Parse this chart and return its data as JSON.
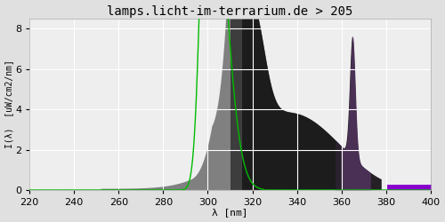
{
  "title": "lamps.licht-im-terrarium.de > 205",
  "xlabel": "λ [nm]",
  "ylabel": "I(λ)  [uW/cm2/nm]",
  "xlim": [
    220,
    400
  ],
  "ylim": [
    0,
    8.5
  ],
  "yticks": [
    0,
    2,
    4,
    6,
    8
  ],
  "xticks": [
    220,
    240,
    260,
    280,
    300,
    320,
    340,
    360,
    380,
    400
  ],
  "bg_color": "#e0e0e0",
  "plot_bg_color": "#eeeeee",
  "grid_color": "#ffffff",
  "green_line_color": "#00bb00",
  "title_fontsize": 10,
  "axis_fontsize": 8,
  "tick_fontsize": 8
}
